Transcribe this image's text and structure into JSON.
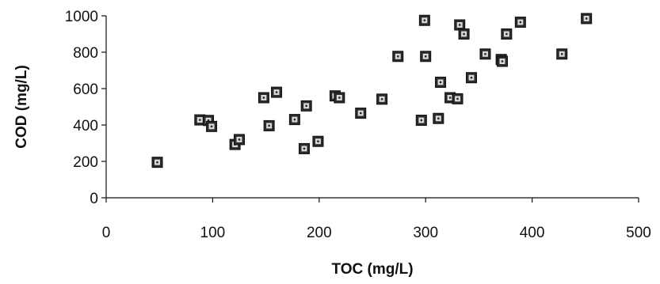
{
  "chart_data": {
    "type": "scatter",
    "title": "",
    "xlabel": "TOC (mg/L)",
    "ylabel": "COD (mg/L)",
    "xlim": [
      0,
      500
    ],
    "ylim": [
      0,
      1000
    ],
    "x_ticks": [
      "0",
      "100",
      "200",
      "300",
      "400",
      "500"
    ],
    "y_ticks": [
      "0",
      "200",
      "400",
      "600",
      "800",
      "1000"
    ],
    "grid": false,
    "legend": "none",
    "marker": "square",
    "series": [
      {
        "points": [
          {
            "x": 48,
            "y": 195
          },
          {
            "x": 88,
            "y": 428
          },
          {
            "x": 96,
            "y": 425
          },
          {
            "x": 99,
            "y": 392
          },
          {
            "x": 121,
            "y": 293
          },
          {
            "x": 125,
            "y": 320
          },
          {
            "x": 148,
            "y": 550
          },
          {
            "x": 153,
            "y": 396
          },
          {
            "x": 160,
            "y": 580
          },
          {
            "x": 177,
            "y": 430
          },
          {
            "x": 186,
            "y": 270
          },
          {
            "x": 188,
            "y": 505
          },
          {
            "x": 199,
            "y": 310
          },
          {
            "x": 215,
            "y": 560
          },
          {
            "x": 219,
            "y": 550
          },
          {
            "x": 239,
            "y": 465
          },
          {
            "x": 259,
            "y": 542
          },
          {
            "x": 274,
            "y": 777
          },
          {
            "x": 296,
            "y": 426
          },
          {
            "x": 299,
            "y": 975
          },
          {
            "x": 300,
            "y": 777
          },
          {
            "x": 312,
            "y": 436
          },
          {
            "x": 314,
            "y": 635
          },
          {
            "x": 323,
            "y": 550
          },
          {
            "x": 330,
            "y": 544
          },
          {
            "x": 332,
            "y": 950
          },
          {
            "x": 336,
            "y": 900
          },
          {
            "x": 343,
            "y": 660
          },
          {
            "x": 356,
            "y": 790
          },
          {
            "x": 371,
            "y": 760
          },
          {
            "x": 372,
            "y": 750
          },
          {
            "x": 376,
            "y": 900
          },
          {
            "x": 389,
            "y": 965
          },
          {
            "x": 428,
            "y": 790
          },
          {
            "x": 451,
            "y": 985
          }
        ]
      }
    ]
  }
}
